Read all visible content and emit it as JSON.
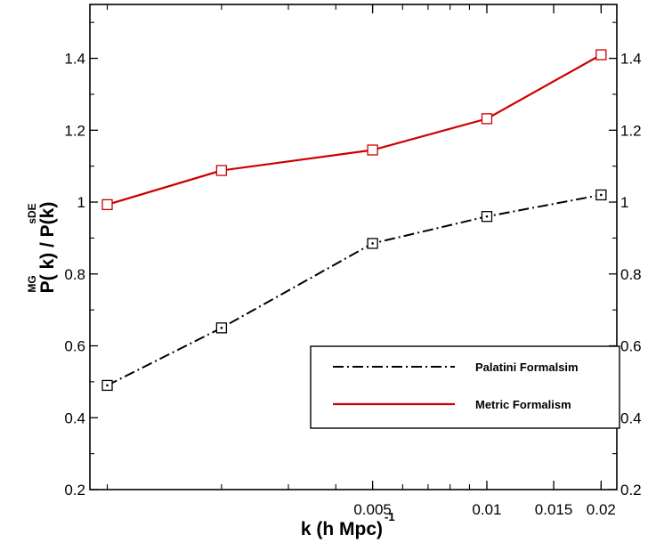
{
  "chart_data": {
    "type": "line",
    "x_scale": "log",
    "x": [
      0.001,
      0.002,
      0.005,
      0.01,
      0.02
    ],
    "xlim": [
      0.0009,
      0.022
    ],
    "ylim": [
      0.2,
      1.55
    ],
    "x_ticks": [
      0.005,
      0.01,
      0.015,
      0.02
    ],
    "x_tick_labels": [
      "0.005",
      "0.01",
      "0.015",
      "0.02"
    ],
    "y_ticks": [
      0.2,
      0.4,
      0.6,
      0.8,
      1.0,
      1.2,
      1.4
    ],
    "y_tick_labels": [
      "0.2",
      "0.4",
      "0.6",
      "0.8",
      "1",
      "1.2",
      "1.4"
    ],
    "xlabel": "k (h Mpc)",
    "xlabel_superscript": "-1",
    "ylabel_main": "P( k) / P(k)",
    "ylabel_sup_mg": "MG",
    "ylabel_sup_sde": "sDE",
    "grid": false,
    "legend_position": "lower-right",
    "series": [
      {
        "name": "Palatini Formalsim",
        "values": [
          0.49,
          0.65,
          0.885,
          0.96,
          1.02
        ],
        "color": "#000000",
        "line_style": "dash-dot",
        "marker": "square-with-dot"
      },
      {
        "name": "Metric Formalism",
        "values": [
          0.993,
          1.088,
          1.145,
          1.232,
          1.41
        ],
        "color": "#cc0000",
        "line_style": "solid",
        "marker": "square"
      }
    ]
  }
}
